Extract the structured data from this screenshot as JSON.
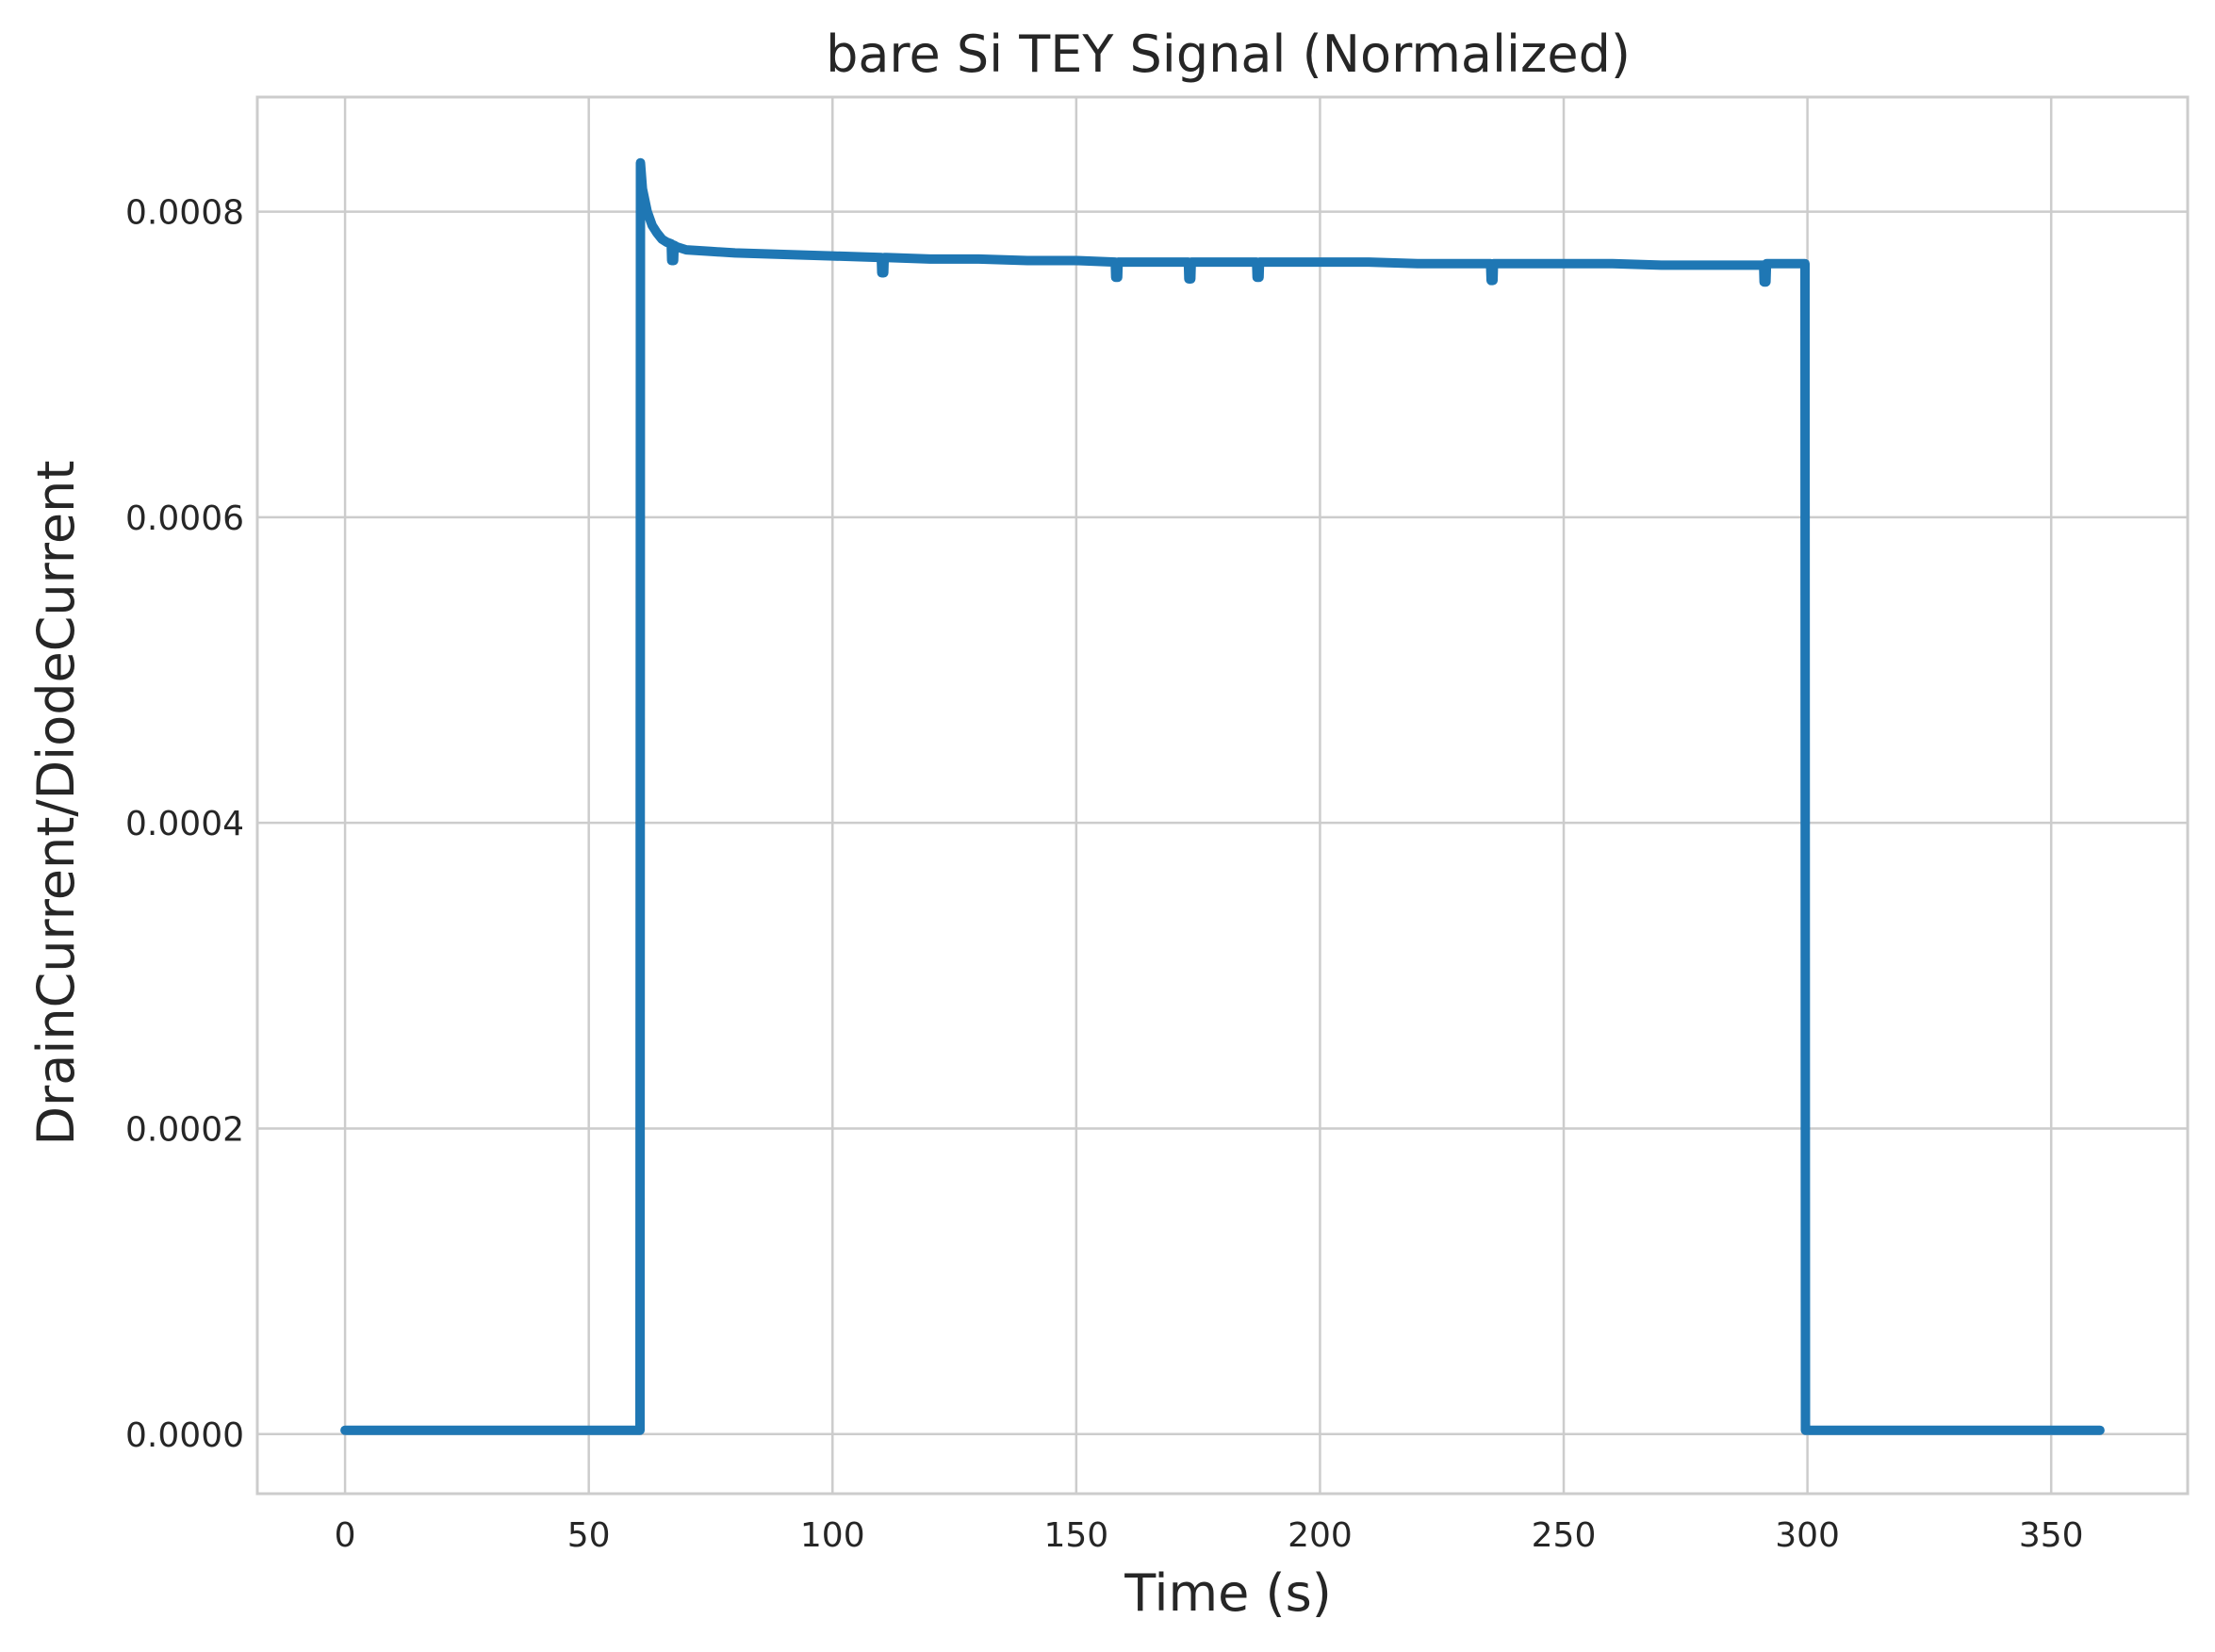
{
  "chart_data": {
    "type": "line",
    "title": "bare Si TEY Signal (Normalized)",
    "xlabel": "Time (s)",
    "ylabel": "DrainCurrent/DiodeCurrent",
    "xlim": [
      -18,
      378
    ],
    "ylim": [
      -3.9e-05,
      0.000875
    ],
    "xticks": [
      0,
      50,
      100,
      150,
      200,
      250,
      300,
      350
    ],
    "xtick_labels": [
      "0",
      "50",
      "100",
      "150",
      "200",
      "250",
      "300",
      "350"
    ],
    "yticks": [
      0.0,
      0.0002,
      0.0004,
      0.0006,
      0.0008
    ],
    "ytick_labels": [
      "0.0000",
      "0.0002",
      "0.0004",
      "0.0006",
      "0.0008"
    ],
    "grid": true,
    "series": [
      {
        "color": "#1f77b4",
        "x": [
          0,
          10,
          20,
          30,
          40,
          50,
          60.5,
          60.6,
          61,
          62,
          63,
          64,
          65,
          66,
          66.9,
          67,
          67.4,
          67.5,
          68,
          70,
          75,
          80,
          90,
          100,
          110,
          110.1,
          110.5,
          110.6,
          111,
          120,
          130,
          140,
          150,
          158,
          158.1,
          158.5,
          158.6,
          159,
          170,
          173,
          173.1,
          173.5,
          173.6,
          174,
          180,
          187,
          187.1,
          187.5,
          187.6,
          188,
          200,
          210,
          220,
          230,
          235,
          235.1,
          235.5,
          235.6,
          236,
          250,
          260,
          270,
          280,
          290,
          291,
          291.1,
          291.5,
          291.6,
          292,
          299.5,
          299.6,
          310,
          320,
          330,
          340,
          350,
          360
        ],
        "y": [
          2.5e-06,
          2.5e-06,
          2.5e-06,
          2.5e-06,
          2.5e-06,
          2.5e-06,
          2.5e-06,
          0.000832,
          0.000815,
          0.0008,
          0.000791,
          0.000786,
          0.000782,
          0.00078,
          0.000779,
          0.000768,
          0.000768,
          0.000778,
          0.000777,
          0.000775,
          0.000774,
          0.000773,
          0.000772,
          0.000771,
          0.00077,
          0.00076,
          0.00076,
          0.00077,
          0.00077,
          0.000769,
          0.000769,
          0.000768,
          0.000768,
          0.000767,
          0.000757,
          0.000757,
          0.000767,
          0.000767,
          0.000767,
          0.000767,
          0.000756,
          0.000756,
          0.000767,
          0.000767,
          0.000767,
          0.000767,
          0.000757,
          0.000757,
          0.000767,
          0.000767,
          0.000767,
          0.000767,
          0.000766,
          0.000766,
          0.000766,
          0.000755,
          0.000755,
          0.000766,
          0.000766,
          0.000766,
          0.000766,
          0.000765,
          0.000765,
          0.000765,
          0.000765,
          0.000754,
          0.000754,
          0.000766,
          0.000766,
          0.000766,
          2.5e-06,
          2.5e-06,
          2.5e-06,
          2.5e-06,
          2.5e-06,
          2.5e-06,
          2.5e-06
        ]
      }
    ]
  }
}
